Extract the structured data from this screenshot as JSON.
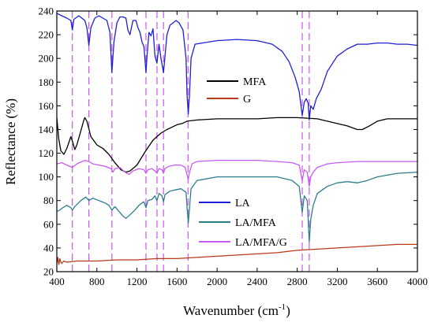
{
  "chart_data": {
    "type": "line",
    "xlabel": "Wavenumber (cm",
    "xlabel_sup": "-1",
    "xlabel_end": ")",
    "ylabel": "Reflectance (%)",
    "xlim": [
      400,
      4000
    ],
    "ylim": [
      20,
      240
    ],
    "x_ticks": [
      "400",
      "800",
      "1200",
      "1600",
      "2000",
      "2400",
      "2800",
      "3200",
      "3600",
      "4000"
    ],
    "y_ticks": [
      "20",
      "40",
      "60",
      "80",
      "100",
      "120",
      "140",
      "160",
      "180",
      "200",
      "220",
      "240"
    ],
    "grid": false,
    "reference_lines": {
      "color": "#cc55ee",
      "style": "dashed",
      "x": [
        555,
        720,
        950,
        1290,
        1400,
        1465,
        1710,
        2850,
        2920
      ]
    },
    "legend_top": {
      "placement": "upper-center",
      "entries": [
        {
          "name": "MFA",
          "color": "#000000"
        },
        {
          "name": "G",
          "color": "#b83a1c"
        }
      ]
    },
    "legend_bottom": {
      "placement": "lower-center",
      "entries": [
        {
          "name": "LA",
          "color": "#1f1fd6"
        },
        {
          "name": "LA/MFA",
          "color": "#2e7d8c"
        },
        {
          "name": "LA/MFA/G",
          "color": "#c65cf0"
        }
      ]
    },
    "series": [
      {
        "name": "LA",
        "color": "#1f1fd6",
        "points": [
          [
            400,
            238
          ],
          [
            450,
            236
          ],
          [
            500,
            234
          ],
          [
            540,
            232
          ],
          [
            555,
            224
          ],
          [
            570,
            233
          ],
          [
            620,
            236
          ],
          [
            680,
            232
          ],
          [
            700,
            226
          ],
          [
            720,
            211
          ],
          [
            740,
            226
          ],
          [
            780,
            234
          ],
          [
            820,
            236
          ],
          [
            860,
            234
          ],
          [
            900,
            232
          ],
          [
            930,
            222
          ],
          [
            950,
            188
          ],
          [
            970,
            214
          ],
          [
            1000,
            230
          ],
          [
            1030,
            235
          ],
          [
            1060,
            235
          ],
          [
            1090,
            234
          ],
          [
            1110,
            224
          ],
          [
            1130,
            220
          ],
          [
            1160,
            232
          ],
          [
            1190,
            232
          ],
          [
            1210,
            226
          ],
          [
            1230,
            222
          ],
          [
            1250,
            214
          ],
          [
            1270,
            210
          ],
          [
            1290,
            188
          ],
          [
            1300,
            202
          ],
          [
            1320,
            222
          ],
          [
            1340,
            219
          ],
          [
            1360,
            225
          ],
          [
            1380,
            202
          ],
          [
            1400,
            196
          ],
          [
            1420,
            212
          ],
          [
            1440,
            200
          ],
          [
            1465,
            188
          ],
          [
            1480,
            202
          ],
          [
            1500,
            220
          ],
          [
            1530,
            228
          ],
          [
            1560,
            230
          ],
          [
            1590,
            232
          ],
          [
            1620,
            230
          ],
          [
            1660,
            224
          ],
          [
            1690,
            200
          ],
          [
            1700,
            170
          ],
          [
            1712,
            153
          ],
          [
            1725,
            170
          ],
          [
            1740,
            200
          ],
          [
            1780,
            212
          ],
          [
            2000,
            215
          ],
          [
            2200,
            216
          ],
          [
            2400,
            215
          ],
          [
            2550,
            212
          ],
          [
            2650,
            206
          ],
          [
            2720,
            197
          ],
          [
            2780,
            184
          ],
          [
            2820,
            172
          ],
          [
            2850,
            152
          ],
          [
            2870,
            163
          ],
          [
            2890,
            166
          ],
          [
            2910,
            162
          ],
          [
            2920,
            148
          ],
          [
            2935,
            160
          ],
          [
            2960,
            157
          ],
          [
            2990,
            166
          ],
          [
            3040,
            174
          ],
          [
            3100,
            189
          ],
          [
            3200,
            202
          ],
          [
            3300,
            208
          ],
          [
            3400,
            212
          ],
          [
            3500,
            212
          ],
          [
            3600,
            213
          ],
          [
            3700,
            213
          ],
          [
            3800,
            212
          ],
          [
            3900,
            212
          ],
          [
            4000,
            211
          ]
        ]
      },
      {
        "name": "MFA",
        "color": "#000000",
        "points": [
          [
            400,
            150
          ],
          [
            420,
            132
          ],
          [
            440,
            122
          ],
          [
            470,
            119
          ],
          [
            500,
            124
          ],
          [
            540,
            134
          ],
          [
            560,
            129
          ],
          [
            580,
            123
          ],
          [
            600,
            127
          ],
          [
            640,
            139
          ],
          [
            670,
            148
          ],
          [
            680,
            150
          ],
          [
            700,
            147
          ],
          [
            740,
            134
          ],
          [
            800,
            127
          ],
          [
            860,
            124
          ],
          [
            920,
            119
          ],
          [
            980,
            112
          ],
          [
            1040,
            106
          ],
          [
            1090,
            104
          ],
          [
            1130,
            105
          ],
          [
            1200,
            110
          ],
          [
            1280,
            121
          ],
          [
            1360,
            131
          ],
          [
            1440,
            137
          ],
          [
            1500,
            140
          ],
          [
            1550,
            142
          ],
          [
            1600,
            144
          ],
          [
            1650,
            145
          ],
          [
            1700,
            147
          ],
          [
            1800,
            148
          ],
          [
            2000,
            149
          ],
          [
            2200,
            149
          ],
          [
            2400,
            149
          ],
          [
            2600,
            150
          ],
          [
            2800,
            150
          ],
          [
            3000,
            149
          ],
          [
            3100,
            147
          ],
          [
            3200,
            145
          ],
          [
            3300,
            143
          ],
          [
            3400,
            140
          ],
          [
            3450,
            140
          ],
          [
            3520,
            143
          ],
          [
            3600,
            147
          ],
          [
            3700,
            149
          ],
          [
            3800,
            149
          ],
          [
            4000,
            149
          ]
        ]
      },
      {
        "name": "G",
        "color": "#b83a1c",
        "points": [
          [
            400,
            27
          ],
          [
            410,
            32
          ],
          [
            420,
            26
          ],
          [
            430,
            31
          ],
          [
            440,
            28
          ],
          [
            450,
            27
          ],
          [
            470,
            29
          ],
          [
            500,
            28
          ],
          [
            600,
            29
          ],
          [
            800,
            29
          ],
          [
            1000,
            30
          ],
          [
            1200,
            30
          ],
          [
            1400,
            31
          ],
          [
            1600,
            31
          ],
          [
            1800,
            32
          ],
          [
            2000,
            33
          ],
          [
            2200,
            34
          ],
          [
            2400,
            35
          ],
          [
            2600,
            36
          ],
          [
            2800,
            38
          ],
          [
            3000,
            39
          ],
          [
            3200,
            40
          ],
          [
            3400,
            41
          ],
          [
            3600,
            42
          ],
          [
            3800,
            43
          ],
          [
            4000,
            43
          ]
        ]
      },
      {
        "name": "LA/MFA/G",
        "color": "#c65cf0",
        "points": [
          [
            400,
            111
          ],
          [
            450,
            112
          ],
          [
            500,
            110
          ],
          [
            555,
            108
          ],
          [
            600,
            111
          ],
          [
            680,
            114
          ],
          [
            720,
            113
          ],
          [
            760,
            111
          ],
          [
            820,
            110
          ],
          [
            880,
            109
          ],
          [
            940,
            107
          ],
          [
            960,
            104
          ],
          [
            980,
            107
          ],
          [
            1030,
            108
          ],
          [
            1080,
            104
          ],
          [
            1120,
            102
          ],
          [
            1160,
            105
          ],
          [
            1220,
            107
          ],
          [
            1270,
            106
          ],
          [
            1290,
            103
          ],
          [
            1310,
            106
          ],
          [
            1350,
            107
          ],
          [
            1380,
            105
          ],
          [
            1400,
            103
          ],
          [
            1420,
            107
          ],
          [
            1450,
            106
          ],
          [
            1465,
            103
          ],
          [
            1480,
            107
          ],
          [
            1520,
            109
          ],
          [
            1580,
            110
          ],
          [
            1640,
            110
          ],
          [
            1680,
            108
          ],
          [
            1700,
            102
          ],
          [
            1712,
            98
          ],
          [
            1725,
            104
          ],
          [
            1750,
            111
          ],
          [
            1800,
            113
          ],
          [
            2000,
            114
          ],
          [
            2200,
            114
          ],
          [
            2400,
            114
          ],
          [
            2600,
            113
          ],
          [
            2750,
            112
          ],
          [
            2820,
            110
          ],
          [
            2850,
            97
          ],
          [
            2870,
            106
          ],
          [
            2900,
            104
          ],
          [
            2920,
            92
          ],
          [
            2935,
            100
          ],
          [
            2960,
            104
          ],
          [
            3000,
            108
          ],
          [
            3100,
            111
          ],
          [
            3200,
            112
          ],
          [
            3400,
            113
          ],
          [
            3600,
            113
          ],
          [
            3800,
            113
          ],
          [
            4000,
            113
          ]
        ]
      },
      {
        "name": "LA/MFA",
        "color": "#2e7d8c",
        "points": [
          [
            400,
            71
          ],
          [
            430,
            72
          ],
          [
            460,
            74
          ],
          [
            500,
            76
          ],
          [
            540,
            74
          ],
          [
            555,
            72
          ],
          [
            580,
            75
          ],
          [
            640,
            80
          ],
          [
            690,
            83
          ],
          [
            720,
            80
          ],
          [
            760,
            82
          ],
          [
            820,
            80
          ],
          [
            880,
            78
          ],
          [
            920,
            76
          ],
          [
            950,
            72
          ],
          [
            980,
            75
          ],
          [
            1020,
            71
          ],
          [
            1060,
            67
          ],
          [
            1090,
            65
          ],
          [
            1130,
            68
          ],
          [
            1180,
            72
          ],
          [
            1220,
            76
          ],
          [
            1250,
            78
          ],
          [
            1270,
            79
          ],
          [
            1290,
            74
          ],
          [
            1310,
            80
          ],
          [
            1350,
            81
          ],
          [
            1380,
            84
          ],
          [
            1400,
            80
          ],
          [
            1420,
            86
          ],
          [
            1450,
            84
          ],
          [
            1465,
            79
          ],
          [
            1480,
            85
          ],
          [
            1530,
            88
          ],
          [
            1580,
            89
          ],
          [
            1640,
            90
          ],
          [
            1690,
            87
          ],
          [
            1700,
            75
          ],
          [
            1712,
            61
          ],
          [
            1725,
            74
          ],
          [
            1740,
            90
          ],
          [
            1800,
            97
          ],
          [
            2000,
            100
          ],
          [
            2200,
            100
          ],
          [
            2400,
            100
          ],
          [
            2600,
            100
          ],
          [
            2750,
            97
          ],
          [
            2820,
            92
          ],
          [
            2850,
            70
          ],
          [
            2870,
            84
          ],
          [
            2900,
            80
          ],
          [
            2920,
            45
          ],
          [
            2935,
            64
          ],
          [
            2960,
            76
          ],
          [
            3000,
            86
          ],
          [
            3100,
            92
          ],
          [
            3200,
            95
          ],
          [
            3300,
            96
          ],
          [
            3400,
            95
          ],
          [
            3500,
            97
          ],
          [
            3600,
            100
          ],
          [
            3800,
            103
          ],
          [
            4000,
            104
          ]
        ]
      }
    ]
  }
}
